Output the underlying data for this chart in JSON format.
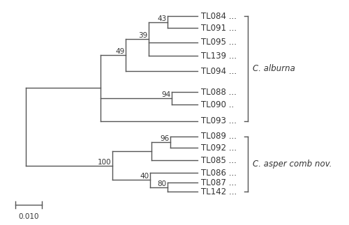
{
  "title": "",
  "scale_bar_label": "0.010",
  "taxa_alburna": [
    "TL084 ...",
    "TL091 ...",
    "TL095 ...",
    "TL139 ...",
    "TL094 ...",
    "TL088 ...",
    "TL090 ..",
    "TL093 ..."
  ],
  "taxa_asper": [
    "TL089 ...",
    "TL092 ...",
    "TL085 ...",
    "TL086 ...",
    "TL087 ...",
    "TL142 ..."
  ],
  "group_labels": [
    "C. alburna",
    "C. asper comb nov."
  ],
  "line_color": "#555555",
  "text_color": "#333333",
  "bg_color": "#ffffff",
  "font_size": 8.5,
  "bootstrap_font_size": 7.5
}
